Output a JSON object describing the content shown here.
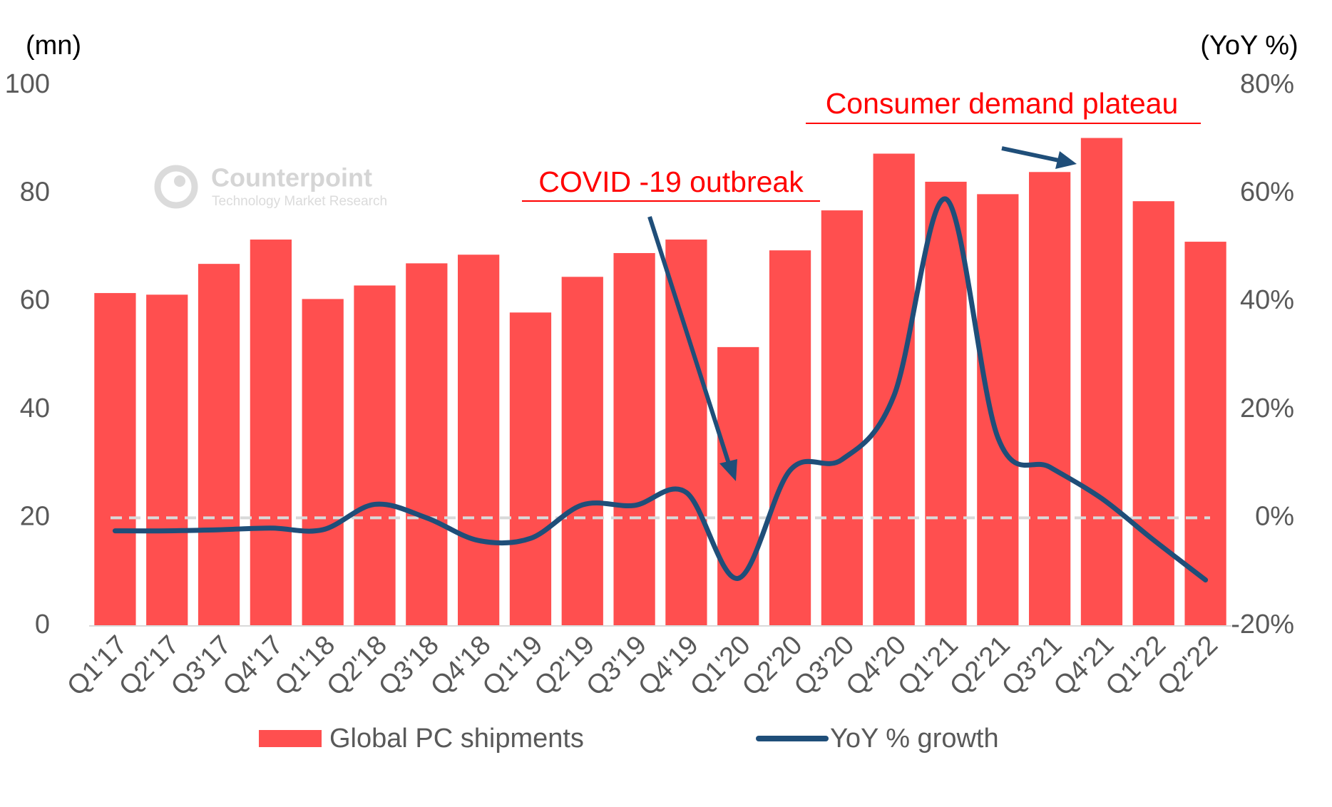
{
  "chart_data": {
    "type": "bar_line",
    "y_label": "(mn)",
    "y2_label": "(YoY %)",
    "watermark": {
      "name": "Counterpoint",
      "tagline": "Technology Market Research"
    },
    "annotations": [
      "COVID -19 outbreak",
      "Consumer demand plateau"
    ],
    "categories": [
      "Q1'17",
      "Q2'17",
      "Q3'17",
      "Q4'17",
      "Q1'18",
      "Q2'18",
      "Q3'18",
      "Q4'18",
      "Q1'19",
      "Q2'19",
      "Q3'19",
      "Q4'19",
      "Q1'20",
      "Q2'20",
      "Q3'20",
      "Q4'20",
      "Q1'21",
      "Q2'21",
      "Q3'21",
      "Q4'21",
      "Q1'22",
      "Q2'22"
    ],
    "series": [
      {
        "name": "Global PC shipments",
        "type": "bar",
        "color": "#ff4f4f",
        "values": [
          61.6,
          61.3,
          67.0,
          71.5,
          60.5,
          63.0,
          67.1,
          68.7,
          58.0,
          64.6,
          69.0,
          71.5,
          51.6,
          69.5,
          76.9,
          87.4,
          82.2,
          79.9,
          84.0,
          90.3,
          78.6,
          71.1
        ]
      },
      {
        "name": "YoY % growth",
        "type": "line",
        "axis": "y2",
        "color": "#1f4e79",
        "values": [
          -2.4,
          -2.4,
          -2.2,
          -1.9,
          -2.2,
          2.5,
          0,
          -4.2,
          -3.8,
          2.4,
          2.3,
          4.7,
          -11.2,
          8.8,
          10.8,
          22.6,
          59.0,
          14.9,
          9.4,
          3.6,
          -4.1,
          -11.5
        ]
      }
    ],
    "ylim": [
      0,
      100
    ],
    "yticks": [
      0,
      20,
      40,
      60,
      80,
      100
    ],
    "y2lim": [
      -20,
      80
    ],
    "y2ticks": [
      {
        "value": -20,
        "label": "-20%"
      },
      {
        "value": 0,
        "label": "0%"
      },
      {
        "value": 20,
        "label": "20%"
      },
      {
        "value": 40,
        "label": "40%"
      },
      {
        "value": 60,
        "label": "60%"
      },
      {
        "value": 80,
        "label": "80%"
      }
    ],
    "zero_line": true
  }
}
